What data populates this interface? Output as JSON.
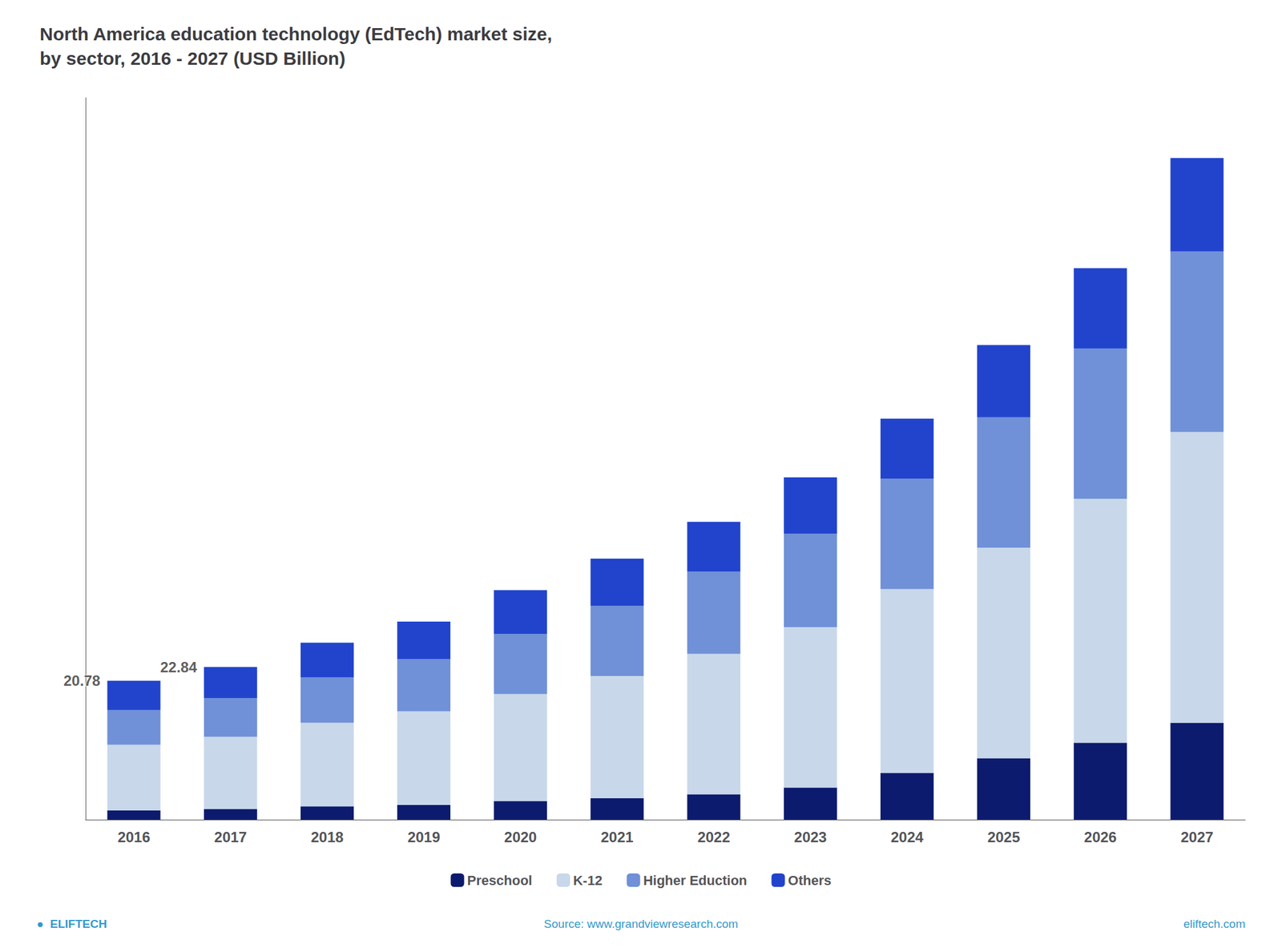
{
  "chart_data": {
    "type": "bar",
    "title": "North America education technology (EdTech) market size,\nby sector, 2016 - 2027 (USD Billion)",
    "categories": [
      "2016",
      "2017",
      "2018",
      "2019",
      "2020",
      "2021",
      "2022",
      "2023",
      "2024",
      "2025",
      "2026",
      "2027"
    ],
    "series": [
      {
        "name": "Preschool",
        "color": "#0d1b6e",
        "values": [
          1.4,
          1.6,
          2.0,
          2.2,
          2.8,
          3.2,
          3.8,
          4.8,
          7.0,
          9.2,
          11.5,
          14.5
        ]
      },
      {
        "name": "K-12",
        "color": "#c8d8ea",
        "values": [
          9.8,
          10.8,
          12.5,
          14.0,
          16.0,
          18.3,
          21.0,
          24.0,
          27.5,
          31.5,
          36.5,
          43.5
        ]
      },
      {
        "name": "Higher Eduction",
        "color": "#7090d8",
        "values": [
          5.2,
          5.8,
          6.8,
          7.8,
          9.0,
          10.5,
          12.3,
          14.0,
          16.5,
          19.5,
          22.5,
          27.0
        ]
      },
      {
        "name": "Others",
        "color": "#2244cc",
        "values": [
          4.38,
          4.64,
          5.17,
          5.64,
          6.54,
          7.04,
          7.46,
          8.4,
          9.0,
          10.8,
          12.0,
          14.0
        ]
      }
    ],
    "annotations": [
      {
        "x": "2016",
        "y": 20.78,
        "text": "20.78"
      },
      {
        "x": "2017",
        "y": 22.84,
        "text": "22.84"
      }
    ],
    "footer": {
      "left": "●  ELIFTECH",
      "center": "Source: www.grandviewresearch.com",
      "right": "eliftech.com"
    },
    "ylim": [
      0,
      108
    ],
    "stacked": true,
    "grid": false,
    "legend": "bottom",
    "tick_labels": "x"
  }
}
